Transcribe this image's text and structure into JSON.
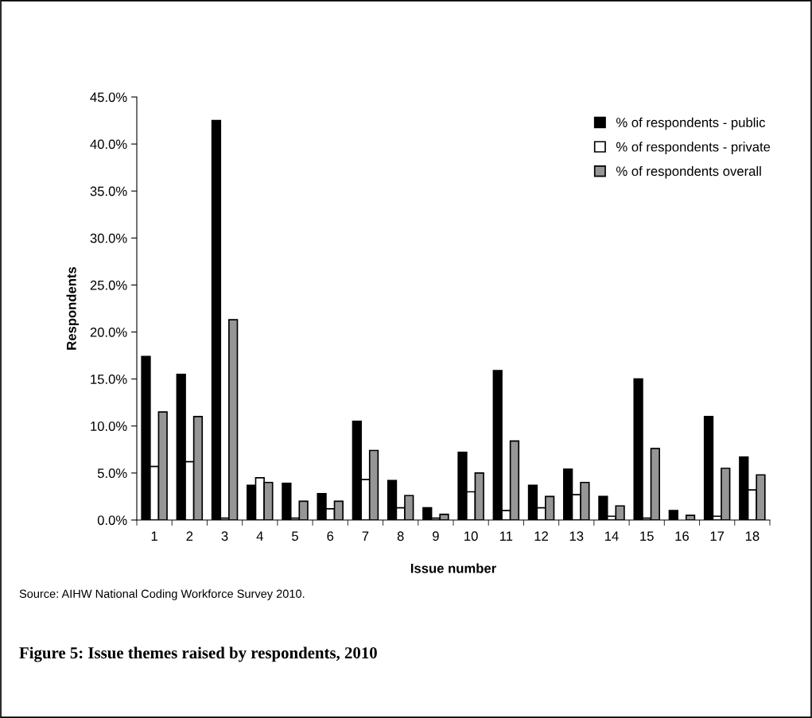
{
  "chart_data": {
    "type": "bar",
    "title": "Figure 5: Issue themes raised by respondents, 2010",
    "xlabel": "Issue number",
    "ylabel": "Respondents",
    "annotations": [
      "Source: AIHW National Coding Workforce Survey 2010."
    ],
    "categories": [
      "1",
      "2",
      "3",
      "4",
      "5",
      "6",
      "7",
      "8",
      "9",
      "10",
      "11",
      "12",
      "13",
      "14",
      "15",
      "16",
      "17",
      "18"
    ],
    "series": [
      {
        "name": "% of respondents - public",
        "color": "#000000",
        "values": [
          17.4,
          15.5,
          42.5,
          3.7,
          3.9,
          2.8,
          10.5,
          4.2,
          1.3,
          7.2,
          15.9,
          3.7,
          5.4,
          2.5,
          15.0,
          1.0,
          11.0,
          6.7
        ]
      },
      {
        "name": "% of respondents - private",
        "color": "#ffffff",
        "values": [
          5.7,
          6.2,
          0.2,
          4.5,
          0.2,
          1.2,
          4.3,
          1.3,
          0.2,
          3.0,
          1.0,
          1.3,
          2.7,
          0.4,
          0.2,
          null,
          0.4,
          3.2
        ]
      },
      {
        "name": "% of respondents overall",
        "color": "#969696",
        "values": [
          11.5,
          11.0,
          21.3,
          4.0,
          2.0,
          2.0,
          7.4,
          2.6,
          0.6,
          5.0,
          8.4,
          2.5,
          4.0,
          1.5,
          7.6,
          0.5,
          5.5,
          4.8
        ]
      }
    ],
    "ylim": [
      0,
      45
    ],
    "yticks": [
      {
        "value": 0,
        "label": "0.0%"
      },
      {
        "value": 5,
        "label": "5.0%"
      },
      {
        "value": 10,
        "label": "10.0%"
      },
      {
        "value": 15,
        "label": "15.0%"
      },
      {
        "value": 20,
        "label": "20.0%"
      },
      {
        "value": 25,
        "label": "25.0%"
      },
      {
        "value": 30,
        "label": "30.0%"
      },
      {
        "value": 35,
        "label": "35.0%"
      },
      {
        "value": 40,
        "label": "40.0%"
      },
      {
        "value": 45,
        "label": "45.0%"
      }
    ],
    "grid": false,
    "legend": "top right"
  }
}
